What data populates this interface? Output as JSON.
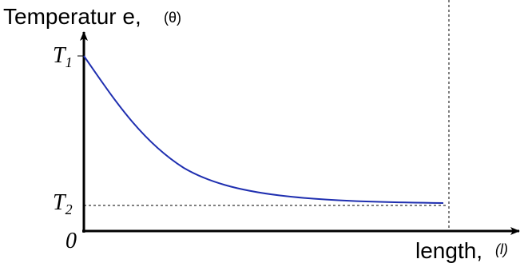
{
  "axes": {
    "y_label": "Temperatur e,",
    "y_symbol": "(θ)",
    "x_label": "length,",
    "x_symbol": "(l)",
    "origin": "0",
    "t1": {
      "symbol": "T",
      "subscript": "1"
    },
    "t2": {
      "symbol": "T",
      "subscript": "2"
    }
  }
}
